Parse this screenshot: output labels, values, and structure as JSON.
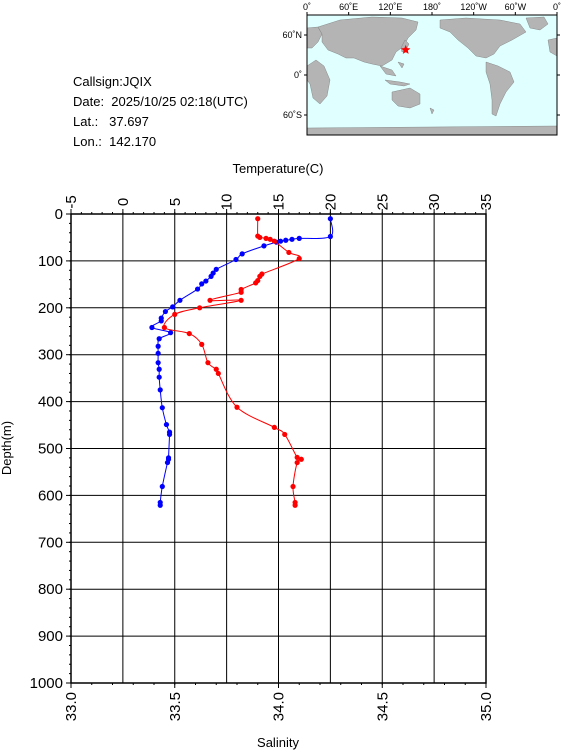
{
  "info": {
    "callsign": "Callsign:JQIX",
    "date": "Date:  2025/10/25 02:18(UTC)",
    "lat": "Lat.:   37.697",
    "lon": "Lon.:  142.170"
  },
  "map": {
    "lon_labels": [
      "0˚",
      "60˚E",
      "120˚E",
      "180˚",
      "120˚W",
      "60˚W",
      "0˚"
    ],
    "lat_labels": [
      "60˚N",
      "0˚",
      "60˚S"
    ],
    "station": {
      "lat": 37.697,
      "lon": 142.17
    },
    "colors": {
      "ocean": "#e0ffff",
      "land": "#b4b4b4",
      "marker": "#ff0000"
    }
  },
  "chart_data": {
    "type": "line",
    "xlabel_top": "Temperature(C)",
    "xlabel_bottom": "Salinity",
    "ylabel": "Depth(m)",
    "temperature_ticks": [
      "-5",
      "0",
      "5",
      "10",
      "15",
      "20",
      "25",
      "30",
      "35"
    ],
    "salinity_ticks": [
      "33.0",
      "33.5",
      "34.0",
      "34.5",
      "35.0"
    ],
    "depth_ticks": [
      "0",
      "100",
      "200",
      "300",
      "400",
      "500",
      "600",
      "700",
      "800",
      "900",
      "1000"
    ],
    "temperature_range": [
      -5,
      35
    ],
    "salinity_range": [
      33.0,
      35.0
    ],
    "depth_range": [
      0,
      1000
    ],
    "grid": true,
    "series": [
      {
        "name": "Temperature",
        "axis": "temperature",
        "color": "#0000ff",
        "points": [
          [
            20.0,
            10
          ],
          [
            20.0,
            48
          ],
          [
            17.0,
            52
          ],
          [
            16.3,
            54
          ],
          [
            15.7,
            56
          ],
          [
            15.2,
            58
          ],
          [
            14.8,
            60
          ],
          [
            13.6,
            68
          ],
          [
            11.5,
            85
          ],
          [
            10.9,
            97
          ],
          [
            9.0,
            118
          ],
          [
            8.7,
            126
          ],
          [
            8.5,
            133
          ],
          [
            8.0,
            143
          ],
          [
            7.6,
            149
          ],
          [
            7.2,
            160
          ],
          [
            5.5,
            184
          ],
          [
            4.8,
            198
          ],
          [
            4.1,
            208
          ],
          [
            3.7,
            222
          ],
          [
            3.7,
            228
          ],
          [
            2.8,
            242
          ],
          [
            4.6,
            253
          ],
          [
            3.5,
            266
          ],
          [
            3.4,
            282
          ],
          [
            3.4,
            297
          ],
          [
            3.4,
            317
          ],
          [
            3.5,
            331
          ],
          [
            3.5,
            348
          ],
          [
            3.6,
            375
          ],
          [
            3.8,
            413
          ],
          [
            4.2,
            449
          ],
          [
            4.5,
            465
          ],
          [
            4.5,
            470
          ],
          [
            4.4,
            520
          ],
          [
            4.4,
            523
          ],
          [
            4.3,
            530
          ],
          [
            3.8,
            581
          ],
          [
            3.6,
            615
          ],
          [
            3.6,
            621
          ]
        ]
      },
      {
        "name": "Salinity",
        "axis": "salinity",
        "color": "#ff0000",
        "points": [
          [
            33.9,
            10
          ],
          [
            33.9,
            47
          ],
          [
            33.91,
            50
          ],
          [
            33.94,
            52
          ],
          [
            33.96,
            54
          ],
          [
            33.98,
            58
          ],
          [
            34.05,
            82
          ],
          [
            34.1,
            95
          ],
          [
            33.92,
            128
          ],
          [
            33.91,
            133
          ],
          [
            33.9,
            142
          ],
          [
            33.89,
            147
          ],
          [
            33.82,
            161
          ],
          [
            33.82,
            167
          ],
          [
            33.67,
            184
          ],
          [
            33.82,
            184
          ],
          [
            33.62,
            200
          ],
          [
            33.5,
            214
          ],
          [
            33.45,
            242
          ],
          [
            33.57,
            255
          ],
          [
            33.63,
            278
          ],
          [
            33.66,
            317
          ],
          [
            33.7,
            331
          ],
          [
            33.71,
            340
          ],
          [
            33.8,
            412
          ],
          [
            33.98,
            455
          ],
          [
            34.03,
            470
          ],
          [
            34.09,
            519
          ],
          [
            34.11,
            523
          ],
          [
            34.09,
            530
          ],
          [
            34.07,
            581
          ],
          [
            34.08,
            615
          ],
          [
            34.08,
            621
          ]
        ]
      }
    ]
  }
}
